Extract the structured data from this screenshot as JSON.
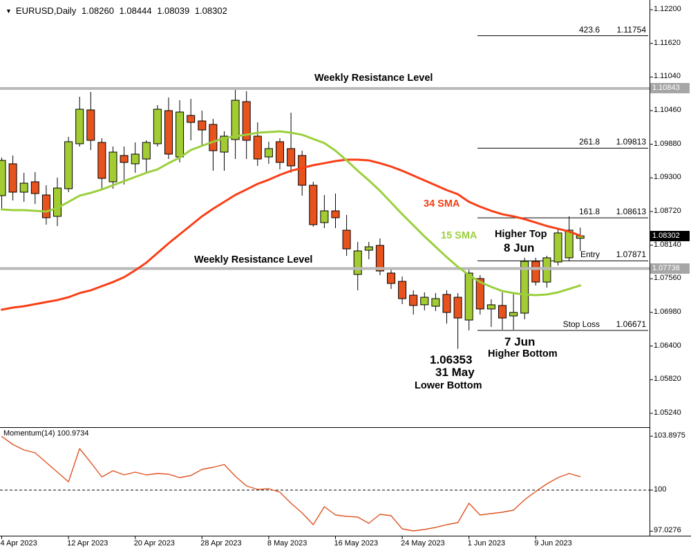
{
  "header": {
    "symbol": "EURUSD,Daily",
    "open": "1.08260",
    "high": "1.08444",
    "low": "1.08039",
    "close": "1.08302"
  },
  "colors": {
    "bull": "#a3cc32",
    "bear": "#e8531d",
    "sma15": "#9bcf3c",
    "sma34": "#fa3e16",
    "momentum": "#df5321",
    "resistance_line": "#b9b9b9",
    "tag_gray": "#a6a6a6",
    "tag_black": "#000000"
  },
  "price_axis": {
    "ticks": [
      "1.12200",
      "1.11620",
      "1.11040",
      "1.10460",
      "1.09880",
      "1.09300",
      "1.08720",
      "1.08140",
      "1.07560",
      "1.06980",
      "1.06400",
      "1.05820",
      "1.05240"
    ],
    "gray_tags": [
      "1.10843",
      "1.07738"
    ],
    "current_tag": "1.08302"
  },
  "indicator": {
    "name": "Momentum(14)",
    "value": "100.9734",
    "axis": [
      "103.8975",
      "100",
      "97.0276"
    ]
  },
  "annotations": {
    "weekly_resistance": "Weekly Resistance Level",
    "sma34_label": "34 SMA",
    "sma15_label": "15 SMA",
    "higher_top": "Higher Top",
    "date_8jun": "8 Jun",
    "date_7jun": "7 Jun",
    "higher_bottom": "Higher Bottom",
    "low_value": "1.06353",
    "date_31may": "31 May",
    "lower_bottom": "Lower Bottom"
  },
  "levels": {
    "rows": [
      {
        "label": "423.6",
        "price": "1.11754"
      },
      {
        "label": "261.8",
        "price": "1.09813"
      },
      {
        "label": "161.8",
        "price": "1.08613"
      },
      {
        "label": "Entry",
        "price": "1.07871"
      },
      {
        "label": "Stop Loss",
        "price": "1.06671"
      }
    ],
    "resistance_prices": [
      "1.10843",
      "1.07738"
    ]
  },
  "chart_data": {
    "type": "candlestick",
    "symbol": "EURUSD",
    "timeframe": "Daily",
    "title": "EURUSD,Daily 1.08260 1.08444 1.08039 1.08302",
    "ylim": [
      1.0524,
      1.122
    ],
    "x_labels": [
      {
        "text": "4 Apr 2023",
        "index": 0
      },
      {
        "text": "12 Apr 2023",
        "index": 6
      },
      {
        "text": "20 Apr 2023",
        "index": 12
      },
      {
        "text": "28 Apr 2023",
        "index": 18
      },
      {
        "text": "8 May 2023",
        "index": 24
      },
      {
        "text": "16 May 2023",
        "index": 30
      },
      {
        "text": "24 May 2023",
        "index": 36
      },
      {
        "text": "1 Jun 2023",
        "index": 42
      },
      {
        "text": "9 Jun 2023",
        "index": 48
      }
    ],
    "candles": [
      [
        1.08995,
        1.09651,
        1.08769,
        1.09603
      ],
      [
        1.09544,
        1.09687,
        1.08912,
        1.09055
      ],
      [
        1.09055,
        1.09389,
        1.08888,
        1.0921
      ],
      [
        1.09234,
        1.09401,
        1.08852,
        1.09031
      ],
      [
        1.09007,
        1.09174,
        1.08495,
        1.08614
      ],
      [
        1.08638,
        1.09305,
        1.08471,
        1.09126
      ],
      [
        1.09115,
        1.10009,
        1.09055,
        1.09925
      ],
      [
        1.0989,
        1.107,
        1.09842,
        1.10485
      ],
      [
        1.10473,
        1.10783,
        1.09782,
        1.09949
      ],
      [
        1.09913,
        1.09985,
        1.09091,
        1.09293
      ],
      [
        1.09234,
        1.09842,
        1.09115,
        1.09746
      ],
      [
        1.09687,
        1.09842,
        1.09186,
        1.09568
      ],
      [
        1.09544,
        1.09913,
        1.09389,
        1.09711
      ],
      [
        1.09627,
        1.09949,
        1.09389,
        1.09913
      ],
      [
        1.0989,
        1.10557,
        1.09842,
        1.10485
      ],
      [
        1.10461,
        1.10688,
        1.09627,
        1.09711
      ],
      [
        1.09663,
        1.1064,
        1.09568,
        1.10437
      ],
      [
        1.10378,
        1.10664,
        1.09949,
        1.10258
      ],
      [
        1.10283,
        1.10461,
        1.09866,
        1.10128
      ],
      [
        1.10223,
        1.10318,
        1.09425,
        1.0977
      ],
      [
        1.09746,
        1.10104,
        1.09425,
        1.10021
      ],
      [
        1.09962,
        1.10819,
        1.09627,
        1.1064
      ],
      [
        1.10616,
        1.10795,
        1.09627,
        1.09949
      ],
      [
        1.10021,
        1.10258,
        1.09508,
        1.09627
      ],
      [
        1.09663,
        1.09925,
        1.09544,
        1.09806
      ],
      [
        1.09925,
        1.09985,
        1.09449,
        1.09568
      ],
      [
        1.09806,
        1.10426,
        1.09389,
        1.09508
      ],
      [
        1.09687,
        1.0977,
        1.08995,
        1.09174
      ],
      [
        1.09174,
        1.09234,
        1.08459,
        1.08495
      ],
      [
        1.0853,
        1.09007,
        1.08435,
        1.08733
      ],
      [
        1.08733,
        1.09031,
        1.08435,
        1.08614
      ],
      [
        1.08399,
        1.08662,
        1.07958,
        1.08077
      ],
      [
        1.07636,
        1.08197,
        1.07362,
        1.08042
      ],
      [
        1.08054,
        1.08197,
        1.07898,
        1.08113
      ],
      [
        1.08137,
        1.08256,
        1.07625,
        1.07696
      ],
      [
        1.0766,
        1.07744,
        1.07386,
        1.07481
      ],
      [
        1.07517,
        1.07601,
        1.07124,
        1.07219
      ],
      [
        1.07279,
        1.07362,
        1.06945,
        1.07101
      ],
      [
        1.07113,
        1.07327,
        1.07017,
        1.07243
      ],
      [
        1.07088,
        1.07315,
        1.07005,
        1.07219
      ],
      [
        1.07291,
        1.07362,
        1.0679,
        1.06981
      ],
      [
        1.07243,
        1.07315,
        1.06353,
        1.06885
      ],
      [
        1.0685,
        1.0772,
        1.06671,
        1.0766
      ],
      [
        1.07565,
        1.07625,
        1.06945,
        1.07041
      ],
      [
        1.07041,
        1.07207,
        1.06731,
        1.07113
      ],
      [
        1.07101,
        1.07327,
        1.06683,
        1.06885
      ],
      [
        1.06921,
        1.07303,
        1.06683,
        1.06981
      ],
      [
        1.06969,
        1.07923,
        1.06862,
        1.07863
      ],
      [
        1.07863,
        1.07923,
        1.07446,
        1.07505
      ],
      [
        1.07505,
        1.07958,
        1.0741,
        1.07923
      ],
      [
        1.07851,
        1.08412,
        1.07792,
        1.08352
      ],
      [
        1.07923,
        1.08638,
        1.07863,
        1.084
      ],
      [
        1.0826,
        1.08444,
        1.08039,
        1.08302
      ]
    ],
    "sma15": [
      1.08757,
      1.08745,
      1.08745,
      1.08733,
      1.08721,
      1.08781,
      1.08888,
      1.08995,
      1.09043,
      1.09102,
      1.09174,
      1.09245,
      1.09317,
      1.09389,
      1.09448,
      1.09556,
      1.09651,
      1.09782,
      1.09854,
      1.09925,
      1.09985,
      1.10021,
      1.10045,
      1.1008,
      1.10092,
      1.10104,
      1.1008,
      1.10045,
      1.09973,
      1.09901,
      1.0977,
      1.09603,
      1.09425,
      1.09258,
      1.09079,
      1.08876,
      1.08674,
      1.08483,
      1.08292,
      1.08113,
      1.07934,
      1.07768,
      1.07625,
      1.07505,
      1.07422,
      1.0735,
      1.07315,
      1.07291,
      1.07279,
      1.07291,
      1.07327,
      1.07386,
      1.07446
    ],
    "sma34": [
      1.07029,
      1.07064,
      1.07088,
      1.07124,
      1.0716,
      1.07195,
      1.07243,
      1.07315,
      1.07362,
      1.07434,
      1.07505,
      1.07589,
      1.07708,
      1.07839,
      1.08006,
      1.08173,
      1.08328,
      1.08483,
      1.08638,
      1.08769,
      1.08888,
      1.09007,
      1.09102,
      1.09198,
      1.09269,
      1.09353,
      1.09424,
      1.09472,
      1.0952,
      1.09555,
      1.09591,
      1.09615,
      1.09615,
      1.09603,
      1.09555,
      1.09496,
      1.09424,
      1.09341,
      1.09257,
      1.09174,
      1.09091,
      1.09019,
      1.08888,
      1.08805,
      1.08733,
      1.08674,
      1.08638,
      1.0859,
      1.08531,
      1.08471,
      1.08424,
      1.08376,
      1.08304
    ],
    "momentum": {
      "name": "Momentum(14)",
      "current": 100.9734,
      "ylim": [
        97.0276,
        103.8975
      ],
      "level_line": 100,
      "values": [
        103.88,
        103.3,
        102.9,
        102.7,
        102.0,
        101.3,
        100.6,
        103.0,
        102.0,
        100.95,
        101.4,
        101.1,
        101.3,
        101.1,
        101.2,
        101.15,
        100.9,
        101.05,
        101.5,
        101.65,
        101.85,
        101.0,
        100.3,
        100.05,
        100.1,
        99.85,
        99.05,
        98.35,
        97.5,
        98.8,
        98.2,
        98.1,
        98.05,
        97.6,
        98.25,
        98.15,
        97.2,
        97.05,
        97.15,
        97.3,
        97.5,
        97.65,
        99.05,
        98.2,
        98.3,
        98.4,
        98.55,
        99.3,
        99.9,
        100.45,
        100.9,
        101.2,
        100.97
      ]
    },
    "overlays": [
      {
        "name": "15 SMA",
        "color": "#9bcf3c"
      },
      {
        "name": "34 SMA",
        "color": "#fa3e16"
      },
      {
        "name": "Weekly Resistance Level",
        "prices": [
          1.10843,
          1.07738
        ]
      },
      {
        "name": "Fibonacci expansion",
        "levels": [
          [
            "423.6",
            1.11754
          ],
          [
            "261.8",
            1.09813
          ],
          [
            "161.8",
            1.08613
          ]
        ]
      },
      {
        "name": "Entry",
        "price": 1.07871
      },
      {
        "name": "Stop Loss",
        "price": 1.06671
      },
      {
        "name": "Lower Bottom",
        "price": 1.06353,
        "date": "31 May"
      }
    ]
  }
}
